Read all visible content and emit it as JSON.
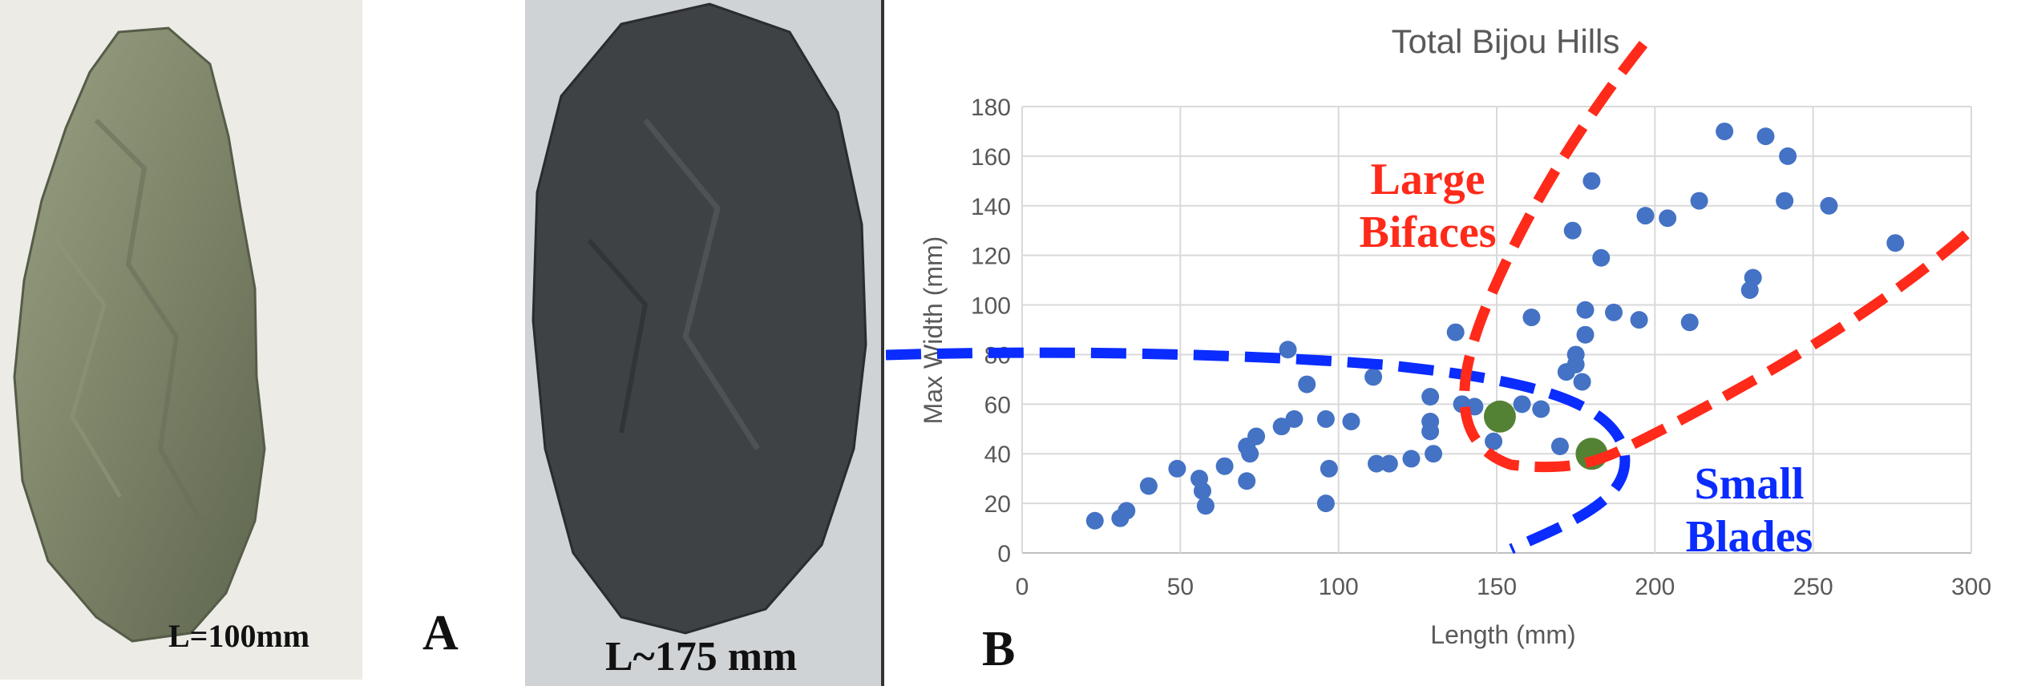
{
  "panel_a": {
    "label": "A",
    "specimen1_caption": "L=100mm",
    "specimen2_caption": "L~175 mm"
  },
  "panel_b": {
    "label": "B",
    "region_large_bifaces": [
      "Large",
      "Bifaces"
    ],
    "region_small_blades": [
      "Small",
      "Blades"
    ]
  },
  "colors": {
    "points": "#4472c4",
    "highlight": "#548235",
    "large_bifaces": "#ff2a1a",
    "small_blades": "#0a2cff",
    "grid": "#d9d9d9"
  },
  "chart_data": {
    "type": "scatter",
    "title": "Total Bijou Hills",
    "xlabel": "Length (mm)",
    "ylabel": "Max Width (mm)",
    "xlim": [
      0,
      300
    ],
    "ylim": [
      0,
      180
    ],
    "xticks": [
      0,
      50,
      100,
      150,
      200,
      250,
      300
    ],
    "yticks": [
      0,
      20,
      40,
      60,
      80,
      100,
      120,
      140,
      160,
      180
    ],
    "grid": true,
    "series": [
      {
        "points": [
          [
            23,
            13
          ],
          [
            31,
            14
          ],
          [
            33,
            17
          ],
          [
            40,
            27
          ],
          [
            49,
            34
          ],
          [
            56,
            30
          ],
          [
            57,
            25
          ],
          [
            58,
            19
          ],
          [
            64,
            35
          ],
          [
            71,
            29
          ],
          [
            71,
            43
          ],
          [
            72,
            40
          ],
          [
            74,
            47
          ],
          [
            82,
            51
          ],
          [
            84,
            82
          ],
          [
            86,
            54
          ],
          [
            90,
            68
          ],
          [
            96,
            54
          ],
          [
            96,
            20
          ],
          [
            97,
            34
          ],
          [
            104,
            53
          ],
          [
            111,
            71
          ],
          [
            112,
            36
          ],
          [
            116,
            36
          ],
          [
            123,
            38
          ],
          [
            129,
            63
          ],
          [
            129,
            53
          ],
          [
            129,
            49
          ],
          [
            130,
            40
          ],
          [
            137,
            89
          ],
          [
            139,
            60
          ],
          [
            143,
            59
          ],
          [
            149,
            45
          ],
          [
            158,
            60
          ],
          [
            161,
            95
          ],
          [
            164,
            58
          ],
          [
            170,
            43
          ],
          [
            172,
            73
          ],
          [
            174,
            130
          ],
          [
            175,
            80
          ],
          [
            175,
            76
          ],
          [
            177,
            69
          ],
          [
            178,
            98
          ],
          [
            178,
            88
          ],
          [
            180,
            150
          ],
          [
            183,
            119
          ],
          [
            187,
            97
          ],
          [
            195,
            94
          ],
          [
            197,
            136
          ],
          [
            204,
            135
          ],
          [
            211,
            93
          ],
          [
            214,
            142
          ],
          [
            222,
            170
          ],
          [
            230,
            106
          ],
          [
            231,
            111
          ],
          [
            235,
            168
          ],
          [
            241,
            142
          ],
          [
            242,
            160
          ],
          [
            255,
            140
          ],
          [
            276,
            125
          ]
        ]
      },
      {
        "points": [
          [
            151,
            55
          ],
          [
            180,
            40
          ]
        ]
      }
    ]
  }
}
